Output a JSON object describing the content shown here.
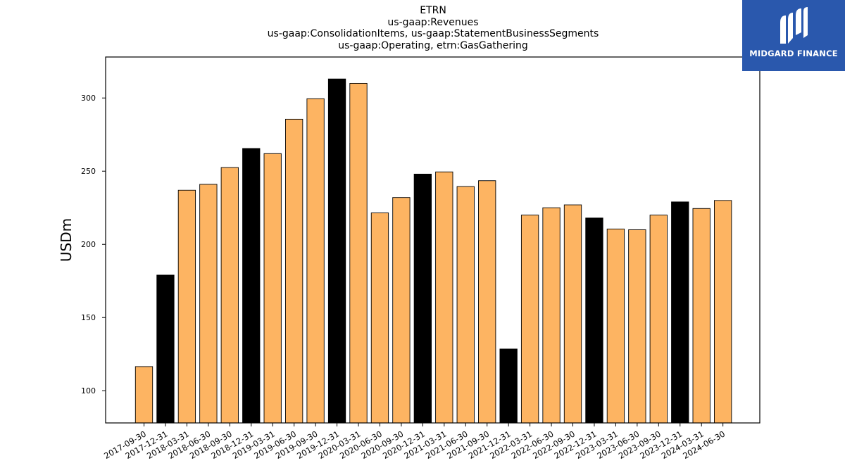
{
  "chart_data": {
    "type": "bar",
    "title_lines": [
      "ETRN",
      "us-gaap:Revenues",
      "us-gaap:ConsolidationItems, us-gaap:StatementBusinessSegments",
      "us-gaap:Operating, etrn:GasGathering"
    ],
    "ylabel": "USDm",
    "xlabel": "",
    "ylim": [
      78,
      328
    ],
    "yticks": [
      100,
      150,
      200,
      250,
      300
    ],
    "categories": [
      "2017-09-30",
      "2017-12-31",
      "2018-03-31",
      "2018-06-30",
      "2018-09-30",
      "2018-12-31",
      "2019-03-31",
      "2019-06-30",
      "2019-09-30",
      "2019-12-31",
      "2020-03-31",
      "2020-06-30",
      "2020-09-30",
      "2020-12-31",
      "2021-03-31",
      "2021-06-30",
      "2021-09-30",
      "2021-12-31",
      "2022-03-31",
      "2022-06-30",
      "2022-09-30",
      "2022-12-31",
      "2023-03-31",
      "2023-06-30",
      "2023-09-30",
      "2023-12-31",
      "2024-03-31",
      "2024-06-30"
    ],
    "values": [
      116.5,
      179,
      237,
      241,
      252.5,
      265.5,
      262,
      285.5,
      299.5,
      313,
      310,
      221.5,
      232,
      248,
      249.5,
      239.5,
      243.5,
      128.5,
      220,
      225,
      227,
      218,
      210.5,
      210,
      220,
      229,
      224.5,
      230
    ],
    "highlight": [
      false,
      true,
      false,
      false,
      false,
      true,
      false,
      false,
      false,
      true,
      false,
      false,
      false,
      true,
      false,
      false,
      false,
      true,
      false,
      false,
      false,
      true,
      false,
      false,
      false,
      true,
      false,
      false
    ],
    "colors": {
      "normal": "#fdb462",
      "highlight": "#000000",
      "edge": "#000000"
    },
    "grid": false,
    "legend": "none"
  },
  "logo": {
    "text": "MIDGARD FINANCE",
    "background": "#2a58ad"
  }
}
